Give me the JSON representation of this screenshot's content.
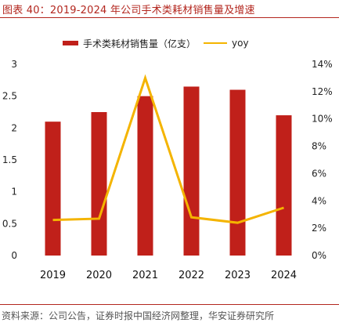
{
  "figure": {
    "title": "图表 40：2019-2024 年公司手术类耗材销售量及增速",
    "source": "资料来源：公司公告，证券时报中国经济网整理，华安证券研究所"
  },
  "legend": {
    "bar_label": "手术类耗材销售量（亿支）",
    "line_label": "yoy"
  },
  "colors": {
    "bar": "#c0201a",
    "line": "#f4b400",
    "accent": "#b3261e"
  },
  "chart_data": {
    "type": "bar",
    "categories": [
      "2019",
      "2020",
      "2021",
      "2022",
      "2023",
      "2024"
    ],
    "series": [
      {
        "name": "手术类耗材销售量（亿支）",
        "type": "bar",
        "axis": "left",
        "values": [
          2.1,
          2.25,
          2.5,
          2.65,
          2.6,
          2.2
        ]
      },
      {
        "name": "yoy",
        "type": "line",
        "axis": "right",
        "values": [
          0.026,
          0.027,
          0.13,
          0.028,
          0.024,
          0.035
        ]
      }
    ],
    "y_left": {
      "ylim": [
        0,
        3
      ],
      "ticks": [
        "0",
        "0.5",
        "1",
        "1.5",
        "2",
        "2.5",
        "3"
      ]
    },
    "y_right": {
      "ylim": [
        0,
        0.14
      ],
      "ticks": [
        "0%",
        "2%",
        "4%",
        "6%",
        "8%",
        "10%",
        "12%",
        "14%"
      ]
    },
    "grid": false
  }
}
